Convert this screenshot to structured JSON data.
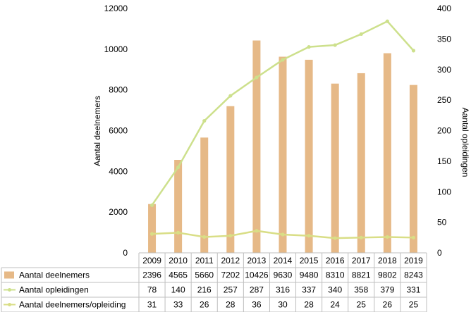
{
  "chart_data": {
    "type": "bar",
    "categories": [
      "2009",
      "2010",
      "2011",
      "2012",
      "2013",
      "2014",
      "2015",
      "2016",
      "2017",
      "2018",
      "2019"
    ],
    "series": [
      {
        "name": "Aantal deelnemers",
        "type": "bar",
        "axis": "left",
        "color": "#E6B987",
        "values": [
          2396,
          4565,
          5660,
          7202,
          10426,
          9630,
          9480,
          8310,
          8821,
          9802,
          8243
        ]
      },
      {
        "name": "Aantal opleidingen",
        "type": "line",
        "axis": "right",
        "color": "#CDE08C",
        "values": [
          78,
          140,
          216,
          257,
          287,
          316,
          337,
          340,
          358,
          379,
          331
        ]
      },
      {
        "name": "Aantal deelnemers/opleiding",
        "type": "line",
        "axis": "right",
        "color": "#D9DE86",
        "values": [
          31,
          33,
          26,
          28,
          36,
          30,
          28,
          24,
          25,
          26,
          25
        ]
      }
    ],
    "ylabel_left": "Aantal deelnemers",
    "ylabel_right": "Aantal opleidingen",
    "ylim_left": [
      0,
      12000
    ],
    "ylim_right": [
      0,
      400
    ],
    "yticks_left": [
      "0",
      "2000",
      "4000",
      "6000",
      "8000",
      "10000",
      "12000"
    ],
    "yticks_right": [
      "0",
      "50",
      "100",
      "150",
      "200",
      "250",
      "300",
      "350",
      "400"
    ],
    "grid": false,
    "legend": "data-table-below"
  }
}
